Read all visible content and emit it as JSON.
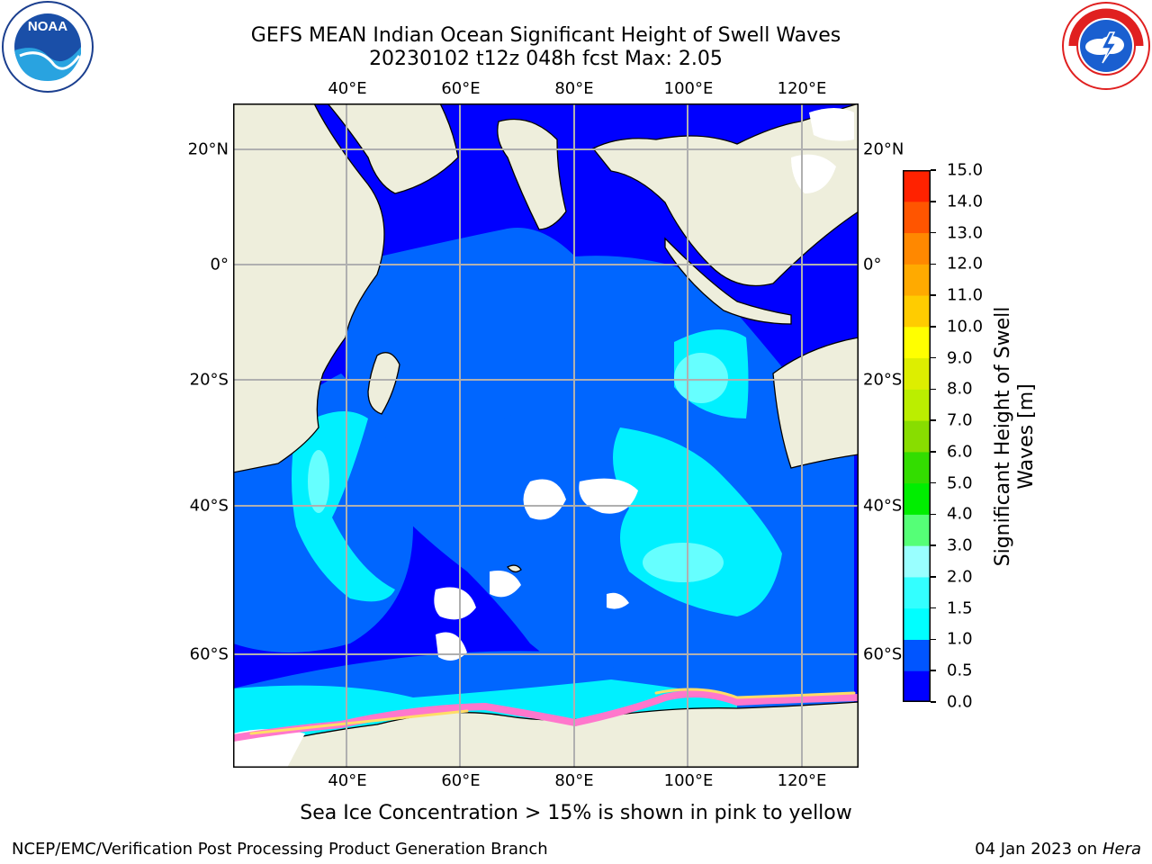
{
  "title": {
    "line1": "GEFS MEAN Indian Ocean Significant Height of Swell Waves",
    "line2": "20230102 t12z 048h fcst   Max: 2.05"
  },
  "logos": {
    "left": {
      "name": "noaa-logo",
      "text": "NOAA",
      "ring_text": "NATIONAL OCEANIC AND ATMOSPHERIC ADMINISTRATION · U.S. DEPARTMENT OF COMMERCE"
    },
    "right": {
      "name": "nws-logo",
      "ring_text": "NATIONAL WEATHER SERVICE"
    }
  },
  "map": {
    "projection": "equirectangular",
    "lon_range": [
      20,
      130
    ],
    "lat_range": [
      -75,
      27
    ],
    "lon_ticks": [
      {
        "value": 40,
        "label": "40°E"
      },
      {
        "value": 60,
        "label": "60°E"
      },
      {
        "value": 80,
        "label": "80°E"
      },
      {
        "value": 100,
        "label": "100°E"
      },
      {
        "value": 120,
        "label": "120°E"
      }
    ],
    "lat_ticks": [
      {
        "value": 20,
        "label": "20°N"
      },
      {
        "value": 0,
        "label": "0°"
      },
      {
        "value": -20,
        "label": "20°S"
      },
      {
        "value": -40,
        "label": "40°S"
      },
      {
        "value": -60,
        "label": "60°S"
      }
    ],
    "land_color": "#eeeedc",
    "gridlines": true
  },
  "colorbar": {
    "label_line1": "Significant Height of Swell",
    "label_line2": "Waves [m]",
    "levels": [
      {
        "value": "0.0",
        "color": "#0000ff"
      },
      {
        "value": "0.5",
        "color": "#0055ff"
      },
      {
        "value": "1.0",
        "color": "#00ffff"
      },
      {
        "value": "1.5",
        "color": "#33ffff"
      },
      {
        "value": "2.0",
        "color": "#99ffff"
      },
      {
        "value": "3.0",
        "color": "#55ff77"
      },
      {
        "value": "4.0",
        "color": "#00ee00"
      },
      {
        "value": "5.0",
        "color": "#33dd00"
      },
      {
        "value": "6.0",
        "color": "#88dd00"
      },
      {
        "value": "7.0",
        "color": "#bbee00"
      },
      {
        "value": "8.0",
        "color": "#ddee00"
      },
      {
        "value": "9.0",
        "color": "#ffff00"
      },
      {
        "value": "10.0",
        "color": "#ffcc00"
      },
      {
        "value": "11.0",
        "color": "#ffaa00"
      },
      {
        "value": "12.0",
        "color": "#ff8800"
      },
      {
        "value": "13.0",
        "color": "#ff5500"
      },
      {
        "value": "14.0",
        "color": "#ff2200"
      },
      {
        "value": "15.0",
        "color": "#ff0000"
      }
    ]
  },
  "note": "Sea Ice Concentration > 15% is shown in pink to yellow",
  "footer": {
    "left": "NCEP/EMC/Verification Post Processing Product Generation Branch",
    "right_date": "04 Jan 2023 on ",
    "right_host": "Hera"
  }
}
